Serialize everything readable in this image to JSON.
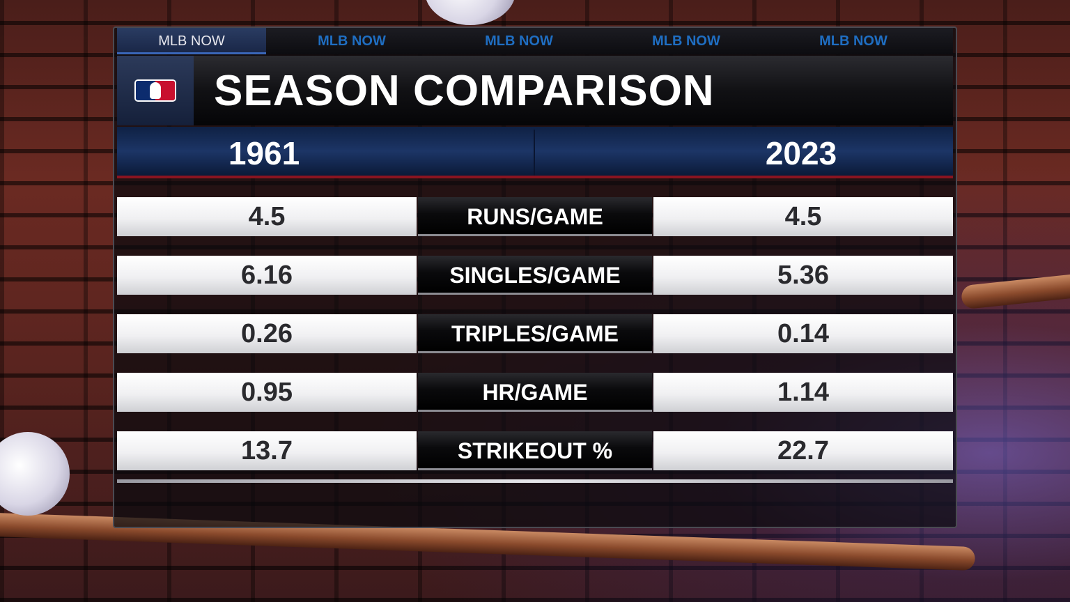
{
  "tabs": [
    "MLB NOW",
    "MLB NOW",
    "MLB NOW",
    "MLB NOW",
    "MLB NOW"
  ],
  "active_tab_index": 0,
  "title": "SEASON COMPARISON",
  "years": {
    "left": "1961",
    "right": "2023"
  },
  "rows": [
    {
      "stat": "RUNS/GAME",
      "left": "4.5",
      "right": "4.5"
    },
    {
      "stat": "SINGLES/GAME",
      "left": "6.16",
      "right": "5.36"
    },
    {
      "stat": "TRIPLES/GAME",
      "left": "0.26",
      "right": "0.14"
    },
    {
      "stat": "HR/GAME",
      "left": "0.95",
      "right": "1.14"
    },
    {
      "stat": "STRIKEOUT %",
      "left": "13.7",
      "right": "22.7"
    }
  ],
  "colors": {
    "tab_text": "#1f6ec2",
    "year_bar": "#1c3566",
    "accent_red": "#8a1420",
    "logo_blue": "#0c2c6e",
    "logo_red": "#c8102e"
  },
  "icons": {
    "logo": "mlb-logo-icon"
  }
}
